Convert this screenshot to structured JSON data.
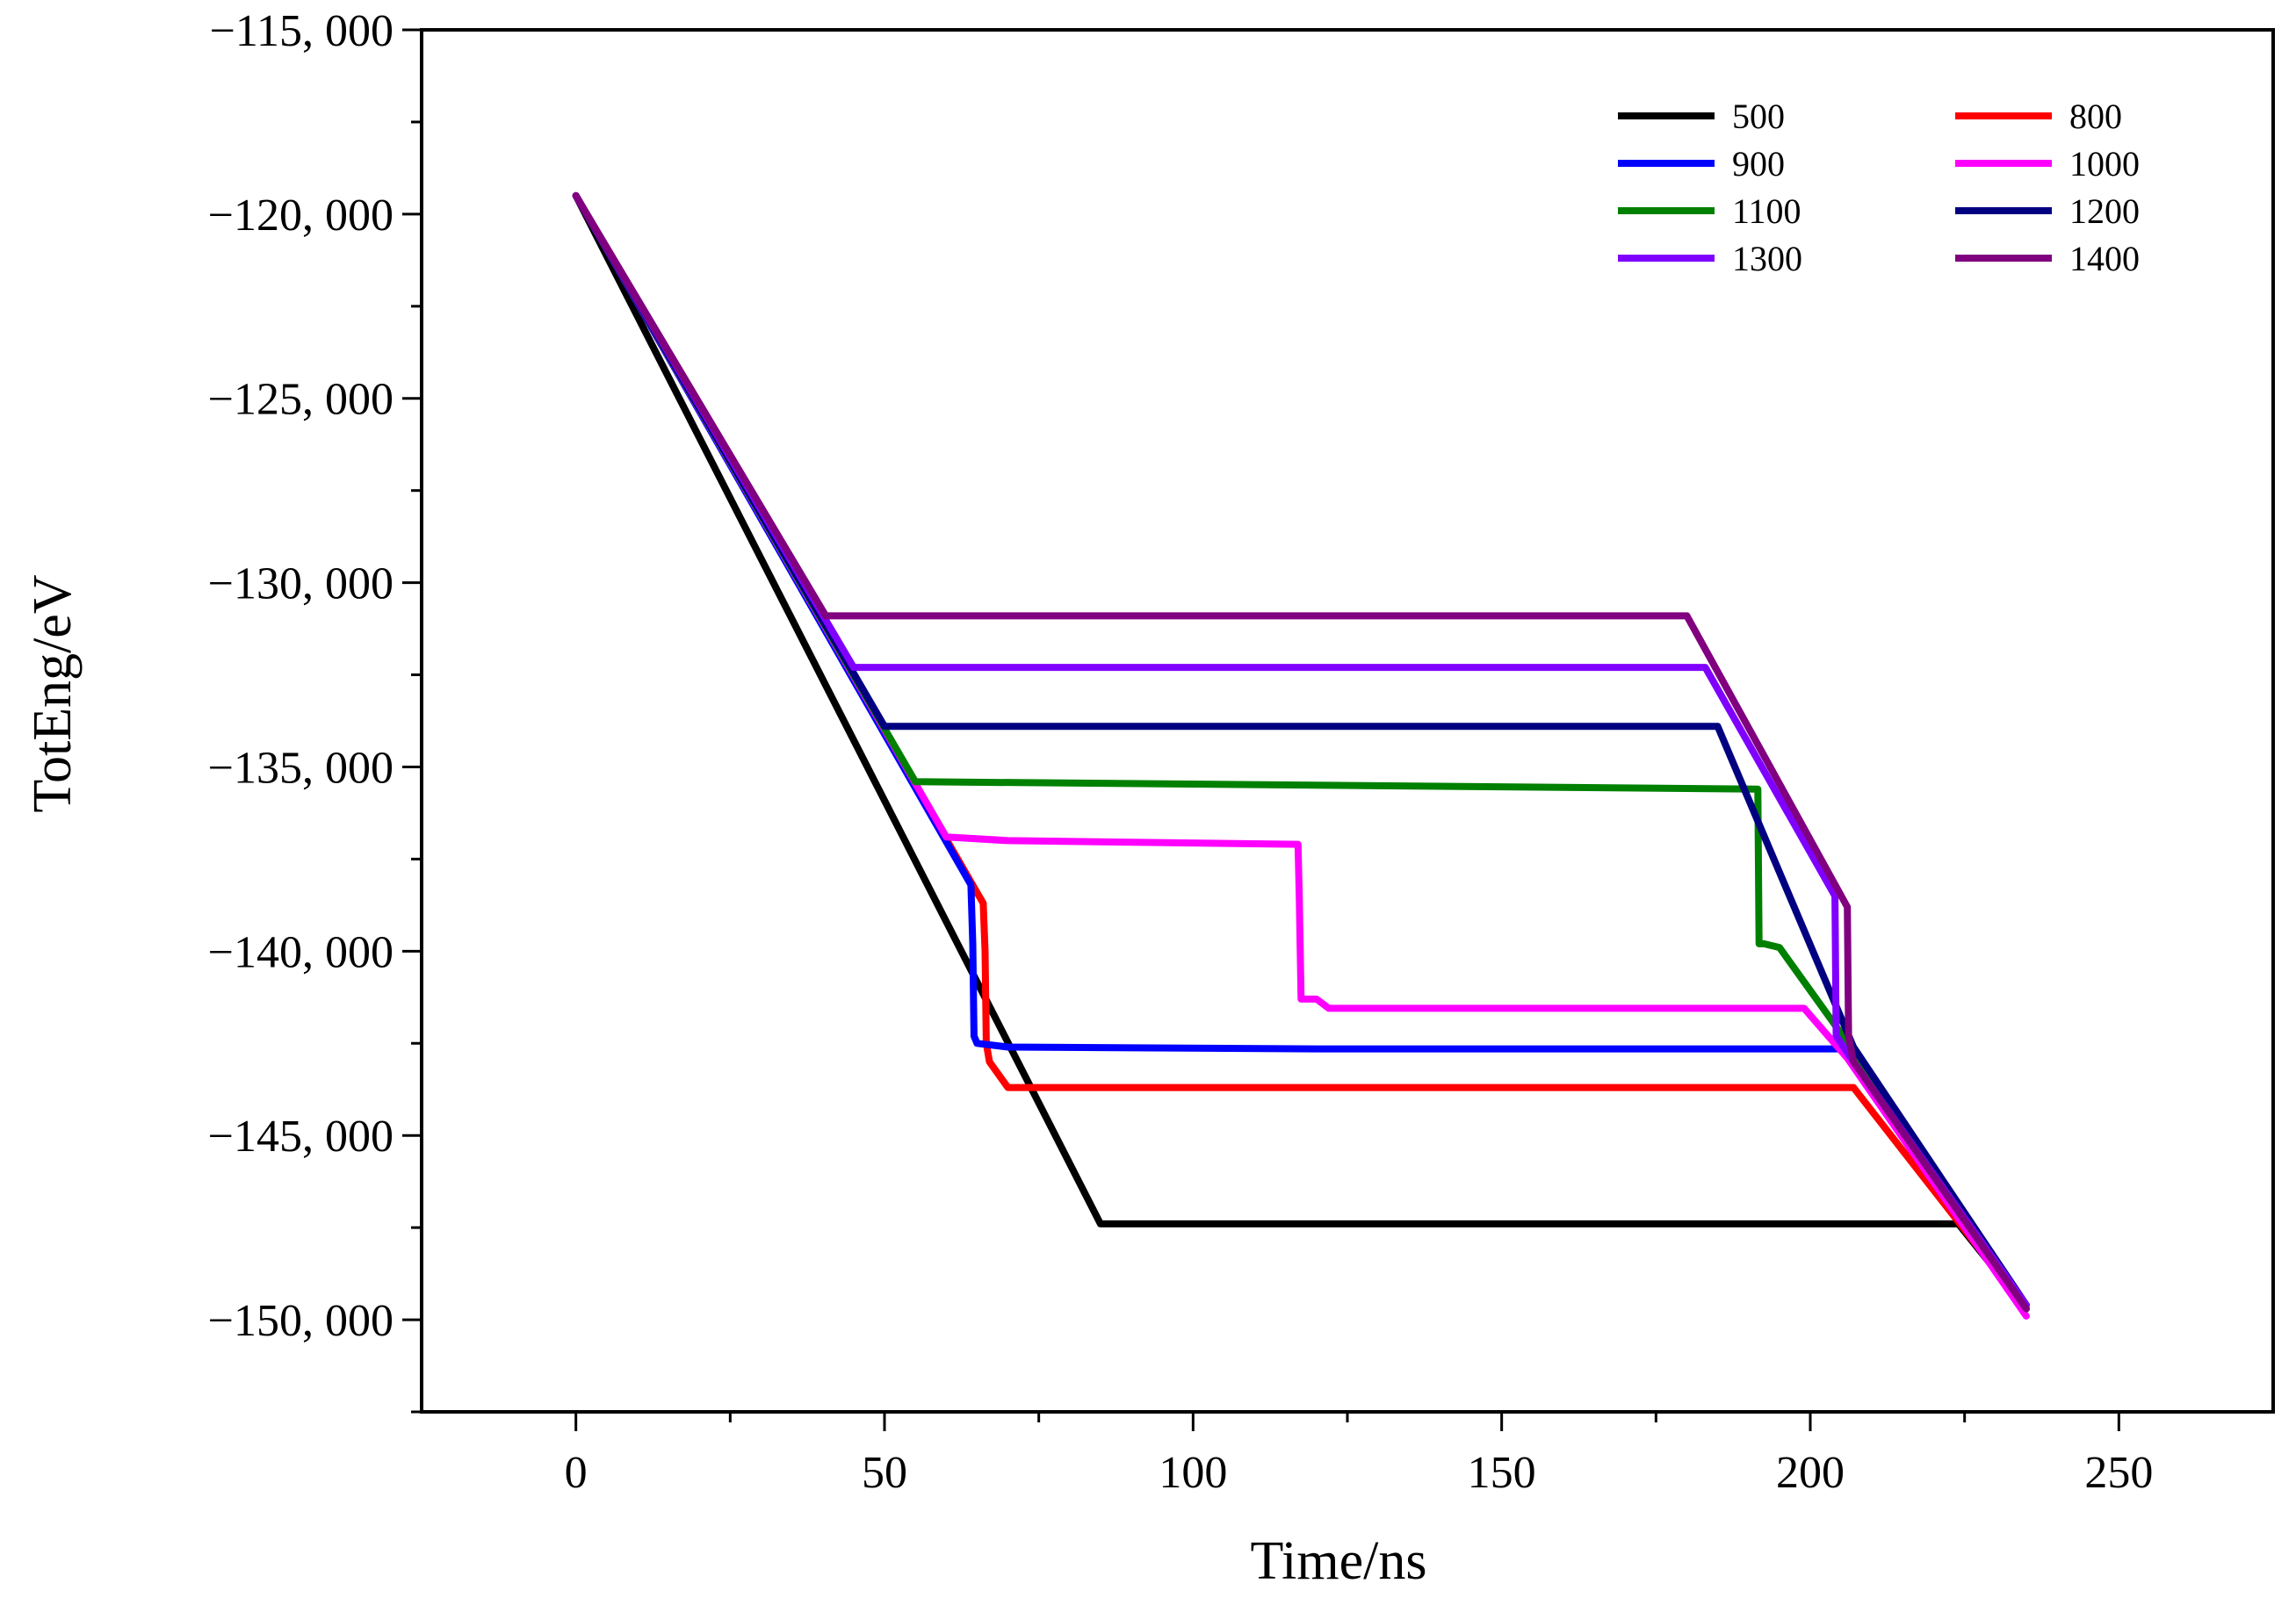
{
  "chart_data": {
    "type": "line",
    "title": "",
    "xlabel": "Time/ns",
    "ylabel": "TotEng/eV",
    "xlim": [
      -25,
      275
    ],
    "ylim": [
      -152500,
      -115000
    ],
    "xticks": [
      0,
      50,
      100,
      150,
      200,
      250
    ],
    "xtick_labels": [
      "0",
      "50",
      "100",
      "150",
      "200",
      "250"
    ],
    "yticks": [
      -115000,
      -120000,
      -125000,
      -130000,
      -135000,
      -140000,
      -145000,
      -150000
    ],
    "ytick_labels": [
      "−115, 000",
      "−120, 000",
      "−125, 000",
      "−130, 000",
      "−135, 000",
      "−140, 000",
      "−145, 000",
      "−150, 000"
    ],
    "grid": false,
    "legend_position": "top-right",
    "series": [
      {
        "name": "500",
        "color": "#000000",
        "x": [
          0,
          85,
          224,
          235
        ],
        "y": [
          -119500,
          -147400,
          -147400,
          -149700
        ]
      },
      {
        "name": "800",
        "color": "#ff0000",
        "x": [
          0,
          66,
          66.3,
          66.5,
          67,
          70,
          207,
          235
        ],
        "y": [
          -119500,
          -138700,
          -140000,
          -142500,
          -143000,
          -143700,
          -143700,
          -149700
        ]
      },
      {
        "name": "900",
        "color": "#0000ff",
        "x": [
          0,
          64,
          64.3,
          64.5,
          65,
          70,
          120,
          207,
          235
        ],
        "y": [
          -119500,
          -138200,
          -139800,
          -142300,
          -142500,
          -142600,
          -142650,
          -142650,
          -149600
        ]
      },
      {
        "name": "1000",
        "color": "#ff00ff",
        "x": [
          0,
          60,
          70,
          117,
          117.2,
          117.5,
          120,
          122,
          199,
          206,
          235
        ],
        "y": [
          -119500,
          -136900,
          -137000,
          -137100,
          -138500,
          -141300,
          -141300,
          -141550,
          -141550,
          -142900,
          -149900
        ]
      },
      {
        "name": "1100",
        "color": "#008000",
        "x": [
          0,
          55,
          191.5,
          191.7,
          192.5,
          195,
          207,
          235
        ],
        "y": [
          -119500,
          -135400,
          -135600,
          -139800,
          -139800,
          -139900,
          -142700,
          -149700
        ]
      },
      {
        "name": "1200",
        "color": "#000080",
        "x": [
          0,
          50,
          185,
          207,
          235
        ],
        "y": [
          -119500,
          -133900,
          -133900,
          -142600,
          -149600
        ]
      },
      {
        "name": "1300",
        "color": "#8000ff",
        "x": [
          0,
          45,
          183,
          204,
          204.2,
          207,
          235
        ],
        "y": [
          -119500,
          -132300,
          -132300,
          -138500,
          -142300,
          -143000,
          -149600
        ]
      },
      {
        "name": "1400",
        "color": "#800080",
        "x": [
          0,
          40.5,
          180,
          206,
          206.2,
          207,
          235
        ],
        "y": [
          -119500,
          -130900,
          -130900,
          -138800,
          -142300,
          -143000,
          -149700
        ]
      }
    ]
  }
}
